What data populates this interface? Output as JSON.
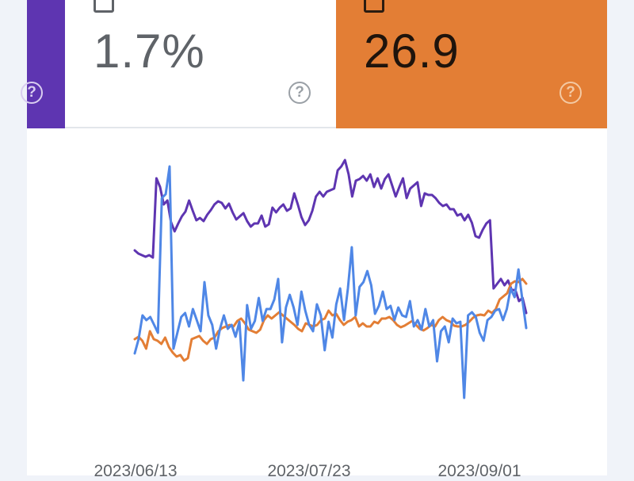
{
  "metrics": {
    "ctr": {
      "value": "1.7%",
      "help": "?"
    },
    "position": {
      "value": "26.9",
      "help": "?"
    },
    "left_help": "?"
  },
  "colors": {
    "purple": "#5e35b1",
    "orange": "#e37e35",
    "blue": "#4f87e6",
    "text": "#5f6368"
  },
  "chart_data": {
    "type": "line",
    "x_ticks": [
      "2023/06/13",
      "2023/07/23",
      "2023/09/01"
    ],
    "x_range": [
      "2023/06/01",
      "2023/09/01"
    ],
    "series": [
      {
        "color": "#5e35b1",
        "values": [
          316,
          320,
          322,
          324,
          322,
          325,
          225,
          236,
          258,
          253,
          280,
          292,
          282,
          273,
          267,
          253,
          266,
          278,
          275,
          279,
          271,
          265,
          258,
          254,
          256,
          263,
          257,
          268,
          277,
          273,
          269,
          279,
          286,
          282,
          282,
          272,
          286,
          283,
          262,
          268,
          262,
          258,
          266,
          263,
          244,
          258,
          274,
          284,
          278,
          266,
          248,
          242,
          248,
          242,
          240,
          238,
          215,
          210,
          202,
          220,
          248,
          228,
          226,
          222,
          228,
          220,
          236,
          225,
          238,
          226,
          220,
          234,
          248,
          236,
          225,
          250,
          238,
          234,
          230,
          260,
          244,
          246,
          246,
          250,
          256,
          260,
          258,
          264,
          264,
          272,
          270,
          278,
          271,
          281,
          298,
          300,
          290,
          282,
          278,
          364,
          358,
          352,
          360,
          354,
          366,
          366,
          380,
          376,
          395
        ]
      },
      {
        "color": "#e37e35",
        "values": [
          428,
          425,
          430,
          440,
          418,
          428,
          430,
          434,
          426,
          438,
          445,
          450,
          448,
          455,
          452,
          428,
          426,
          424,
          430,
          434,
          428,
          426,
          418,
          414,
          412,
          410,
          412,
          405,
          402,
          408,
          416,
          418,
          420,
          416,
          404,
          398,
          402,
          398,
          394,
          398,
          402,
          406,
          410,
          415,
          418,
          408,
          410,
          412,
          410,
          404,
          402,
          392,
          398,
          396,
          404,
          410,
          406,
          404,
          400,
          412,
          408,
          412,
          412,
          406,
          408,
          402,
          402,
          400,
          404,
          410,
          413,
          411,
          408,
          405,
          410,
          415,
          417,
          414,
          410,
          412,
          404,
          400,
          404,
          406,
          411,
          412,
          412,
          410,
          406,
          401,
          398,
          397,
          398,
          392,
          395,
          390,
          378,
          374,
          370,
          358,
          355,
          356,
          352,
          358
        ]
      },
      {
        "color": "#4f87e6",
        "values": [
          446,
          428,
          398,
          404,
          400,
          410,
          420,
          250,
          245,
          210,
          440,
          420,
          400,
          395,
          412,
          390,
          404,
          418,
          356,
          398,
          410,
          440,
          415,
          398,
          415,
          410,
          425,
          406,
          480,
          385,
          415,
          405,
          376,
          405,
          390,
          390,
          378,
          352,
          432,
          388,
          372,
          388,
          410,
          368,
          392,
          410,
          418,
          384,
          398,
          442,
          406,
          426,
          384,
          364,
          404,
          364,
          312,
          398,
          362,
          356,
          342,
          360,
          396,
          386,
          368,
          390,
          386,
          404,
          388,
          398,
          400,
          380,
          412,
          404,
          416,
          390,
          412,
          404,
          456,
          418,
          412,
          432,
          402,
          408,
          406,
          502,
          398,
          394,
          400,
          420,
          430,
          404,
          400,
          392,
          390,
          404,
          390,
          364,
          375,
          340,
          378,
          414
        ]
      }
    ]
  }
}
